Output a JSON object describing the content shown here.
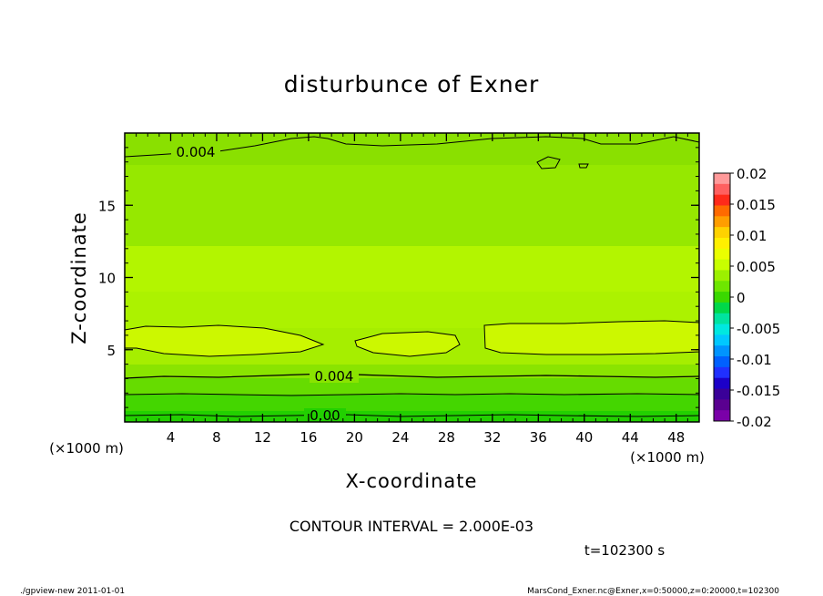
{
  "chart_data": {
    "type": "heatmap",
    "title": "disturbunce of Exner",
    "xlabel": "X-coordinate",
    "ylabel": "Z-coordinate",
    "x_unit": "(×1000 m)",
    "y_unit": "(×1000 m)",
    "xlim": [
      0,
      50
    ],
    "ylim": [
      0,
      20
    ],
    "x_ticks": [
      4,
      8,
      12,
      16,
      20,
      24,
      28,
      32,
      36,
      40,
      44,
      48
    ],
    "y_ticks": [
      5,
      10,
      15
    ],
    "contour_interval_text": "CONTOUR INTERVAL = 2.000E-03",
    "time_text": "t=102300 s",
    "contour_labels": [
      "0.004",
      "0.004",
      "0.00"
    ],
    "colorbar": {
      "labels": [
        "0.02",
        "0.015",
        "0.01",
        "0.005",
        "0",
        "-0.005",
        "-0.01",
        "-0.015",
        "-0.02"
      ],
      "levels": [
        0.02,
        0.015,
        0.01,
        0.005,
        0,
        -0.005,
        -0.01,
        -0.015,
        -0.02
      ],
      "colors": [
        "#ff9a9a",
        "#ff6060",
        "#ff2a1a",
        "#ff6a00",
        "#ff9e00",
        "#ffd200",
        "#fff000",
        "#eaff00",
        "#c8ff00",
        "#9cf000",
        "#6ee600",
        "#3ad800",
        "#00d84a",
        "#00e3a0",
        "#00e8e0",
        "#00c8ff",
        "#0094ff",
        "#0060ff",
        "#2030ff",
        "#1c00c8",
        "#3a0098",
        "#5a0090",
        "#7a00a8"
      ]
    },
    "field_bands": [
      {
        "z_range": [
          0,
          1
        ],
        "value_range": [
          -0.001,
          0.001
        ],
        "color": "#1fd000"
      },
      {
        "z_range": [
          1,
          2.8
        ],
        "value_range": [
          0.001,
          0.003
        ],
        "color": "#45d800"
      },
      {
        "z_range": [
          2.8,
          4.5
        ],
        "value_range": [
          0.004,
          0.005
        ],
        "color": "#8ae400"
      },
      {
        "z_range": [
          4.5,
          7
        ],
        "value_range": [
          0.005,
          0.006
        ],
        "color": "#b8f300"
      },
      {
        "z_range": [
          7,
          11
        ],
        "value_range": [
          0.005,
          0.006
        ],
        "color": "#aef200"
      },
      {
        "z_range": [
          11,
          18
        ],
        "value_range": [
          0.004,
          0.005
        ],
        "color": "#96e800"
      },
      {
        "z_range": [
          18,
          20
        ],
        "value_range": [
          0.003,
          0.004
        ],
        "color": "#86e000"
      }
    ]
  },
  "footer": {
    "left": "./gpview-new   2011-01-01",
    "right": "MarsCond_Exner.nc@Exner,x=0:50000,z=0:20000,t=102300"
  }
}
